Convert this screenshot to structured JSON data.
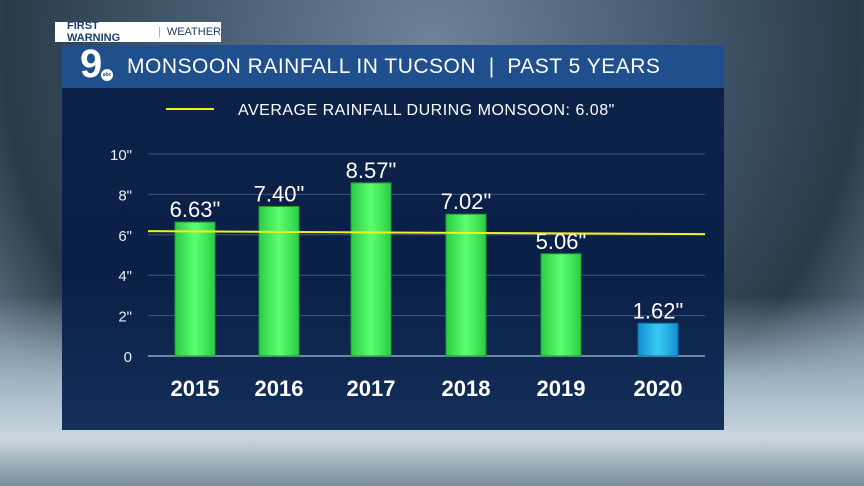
{
  "branding": {
    "tag_left": "FIRST WARNING",
    "tag_right": "WEATHER",
    "logo_text": "9",
    "logo_sub": "abc"
  },
  "title": "MONSOON RAINFALL IN TUCSON  |  PAST 5 YEARS",
  "chart_data": {
    "type": "bar",
    "title": "MONSOON RAINFALL IN TUCSON | PAST 5 YEARS",
    "categories": [
      "2015",
      "2016",
      "2017",
      "2018",
      "2019",
      "2020"
    ],
    "values": [
      6.63,
      7.4,
      8.57,
      7.02,
      5.06,
      1.62
    ],
    "data_labels": [
      "6.63\"",
      "7.40\"",
      "8.57\"",
      "7.02\"",
      "5.06\"",
      "1.62\""
    ],
    "ylim": [
      0,
      10
    ],
    "yticks": [
      0,
      2,
      4,
      6,
      8,
      10
    ],
    "ytick_labels": [
      "0",
      "2\"",
      "4\"",
      "6\"",
      "8\"",
      "10\""
    ],
    "grid": true,
    "reference_line": {
      "value": 6.08,
      "label": "AVERAGE RAINFALL DURING MONSOON: 6.08\"",
      "color": "#f2f21a"
    },
    "legend_placement": "top",
    "colors": {
      "bar": "#33d94e",
      "highlight_bar": "#1aa7e0"
    }
  }
}
